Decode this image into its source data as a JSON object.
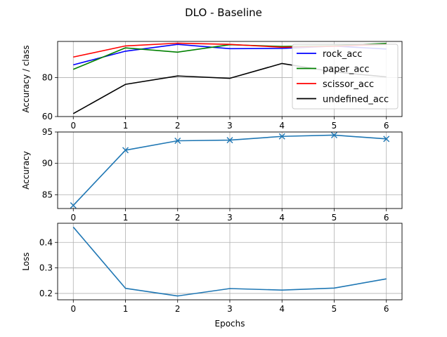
{
  "chart_data": [
    {
      "type": "line",
      "title": "DLO - Baseline",
      "xlabel": "",
      "ylabel": "Accuracy / class",
      "x": [
        0,
        1,
        2,
        3,
        4,
        5,
        6
      ],
      "xlim": [
        -0.3,
        6.3
      ],
      "ylim": [
        60,
        98.5
      ],
      "yticks": [
        60,
        80
      ],
      "grid": true,
      "legend": "right",
      "series": [
        {
          "name": "rock_acc",
          "color": "#0000ff",
          "values": [
            86.5,
            93.5,
            97.0,
            94.8,
            94.9,
            96.1,
            94.6
          ]
        },
        {
          "name": "paper_acc",
          "color": "#008000",
          "values": [
            84.2,
            95.2,
            93.0,
            96.8,
            95.9,
            96.3,
            97.5
          ]
        },
        {
          "name": "scissor_acc",
          "color": "#ff0000",
          "values": [
            90.5,
            96.2,
            97.6,
            97.0,
            95.5,
            96.0,
            97.0
          ]
        },
        {
          "name": "undefined_acc",
          "color": "#000000",
          "values": [
            61.5,
            76.5,
            80.8,
            79.6,
            87.2,
            82.9,
            80.3
          ]
        }
      ]
    },
    {
      "type": "line",
      "xlabel": "",
      "ylabel": "Accuracy",
      "x": [
        0,
        1,
        2,
        3,
        4,
        5,
        6
      ],
      "xlim": [
        -0.3,
        6.3
      ],
      "ylim": [
        82.8,
        95
      ],
      "yticks": [
        85,
        90,
        95
      ],
      "grid": true,
      "marker": "x",
      "series": [
        {
          "color": "#1f77b4",
          "values": [
            83.3,
            92.1,
            93.6,
            93.7,
            94.3,
            94.5,
            93.9
          ]
        }
      ]
    },
    {
      "type": "line",
      "xlabel": "Epochs",
      "ylabel": "Loss",
      "x": [
        0,
        1,
        2,
        3,
        4,
        5,
        6
      ],
      "xlim": [
        -0.3,
        6.3
      ],
      "ylim": [
        0.175,
        0.475
      ],
      "yticks": [
        0.2,
        0.3,
        0.4
      ],
      "grid": true,
      "series": [
        {
          "color": "#1f77b4",
          "values": [
            0.46,
            0.22,
            0.19,
            0.219,
            0.213,
            0.221,
            0.257
          ]
        }
      ]
    }
  ]
}
